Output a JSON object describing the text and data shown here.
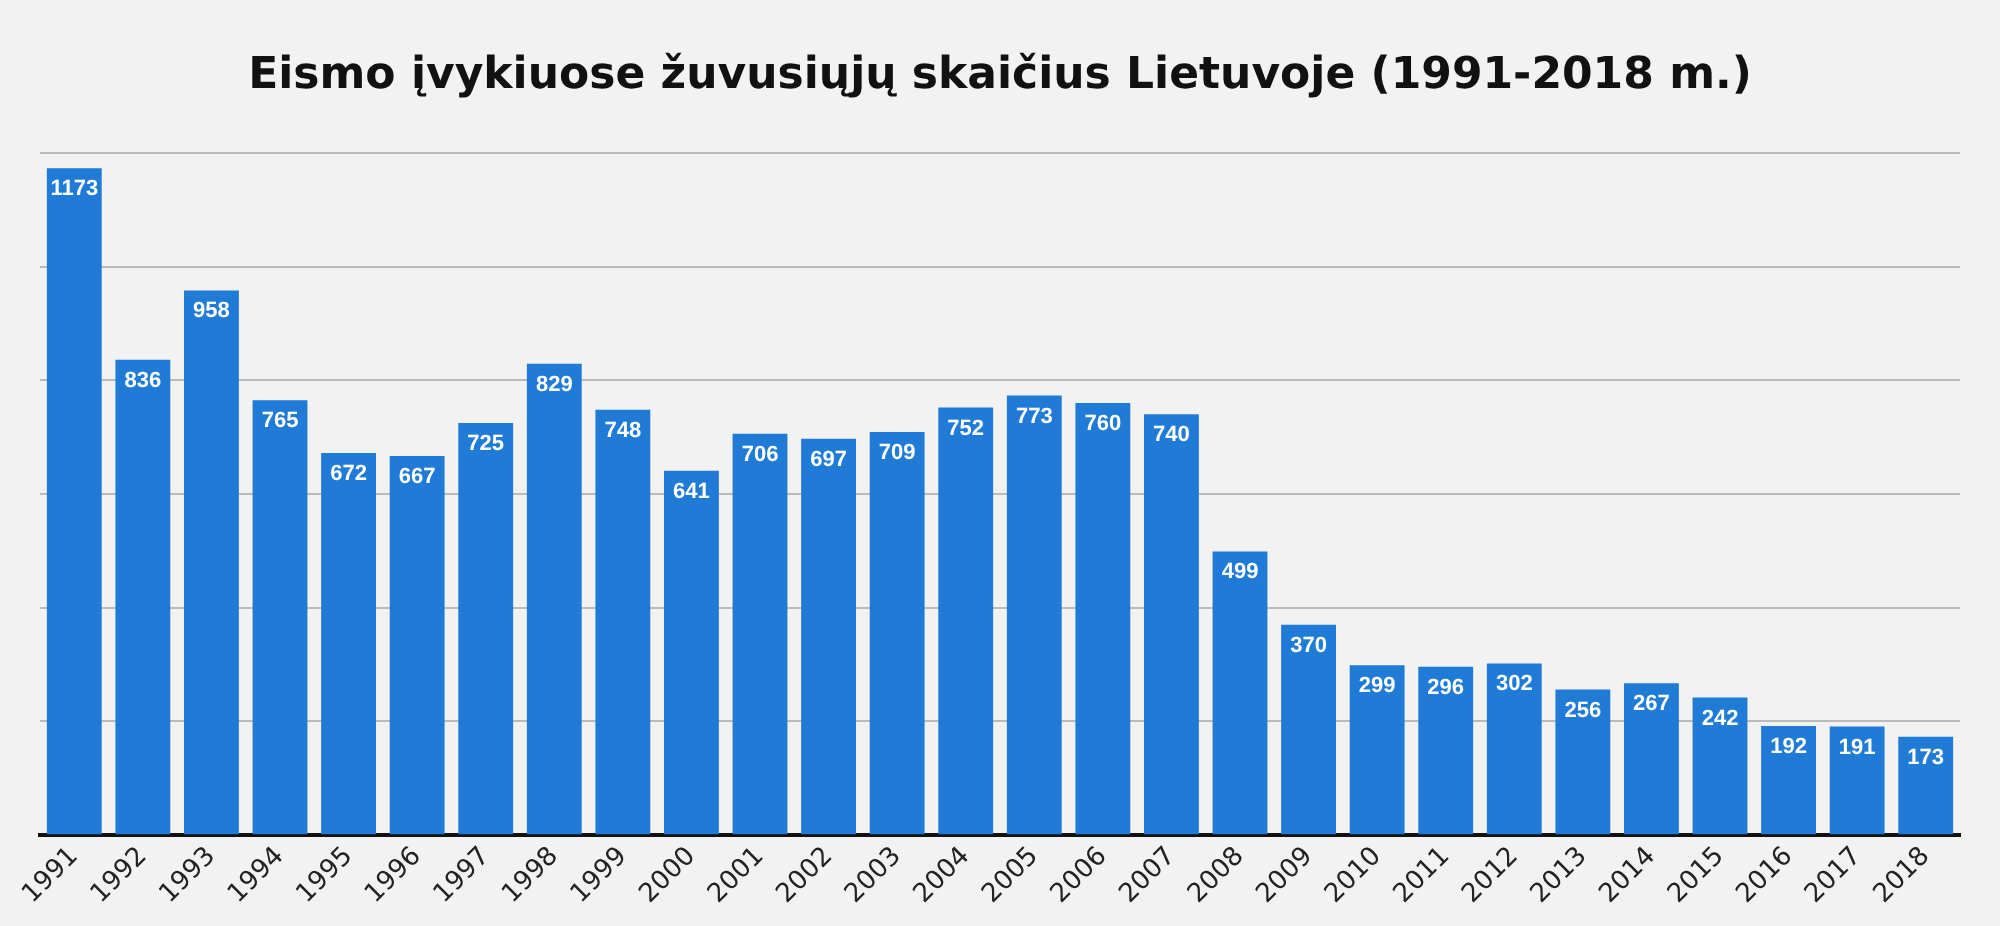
{
  "chart_data": {
    "type": "bar",
    "title": "Eismo įvykiuose žuvusiųjų skaičius Lietuvoje (1991-2018 m.)",
    "categories": [
      "1991",
      "1992",
      "1993",
      "1994",
      "1995",
      "1996",
      "1997",
      "1998",
      "1999",
      "2000",
      "2001",
      "2002",
      "2003",
      "2004",
      "2005",
      "2006",
      "2007",
      "2008",
      "2009",
      "2010",
      "2011",
      "2012",
      "2013",
      "2014",
      "2015",
      "2016",
      "2017",
      "2018"
    ],
    "values": [
      1173,
      836,
      958,
      765,
      672,
      667,
      725,
      829,
      748,
      641,
      706,
      697,
      709,
      752,
      773,
      760,
      740,
      499,
      370,
      299,
      296,
      302,
      256,
      267,
      242,
      192,
      191,
      173
    ],
    "color": "#1f7bd6",
    "ylim": [
      0,
      1200
    ],
    "yticks": [
      {
        "value": 0,
        "label": null
      },
      {
        "value": 200,
        "label": null
      },
      {
        "value": 400,
        "label": null
      },
      {
        "value": 600,
        "label": null
      },
      {
        "value": 800,
        "label": null
      },
      {
        "value": 1000,
        "label": null
      },
      {
        "value": 1200,
        "label": null
      }
    ],
    "tick_labels": "x",
    "grid": "y",
    "data_labels": true
  }
}
